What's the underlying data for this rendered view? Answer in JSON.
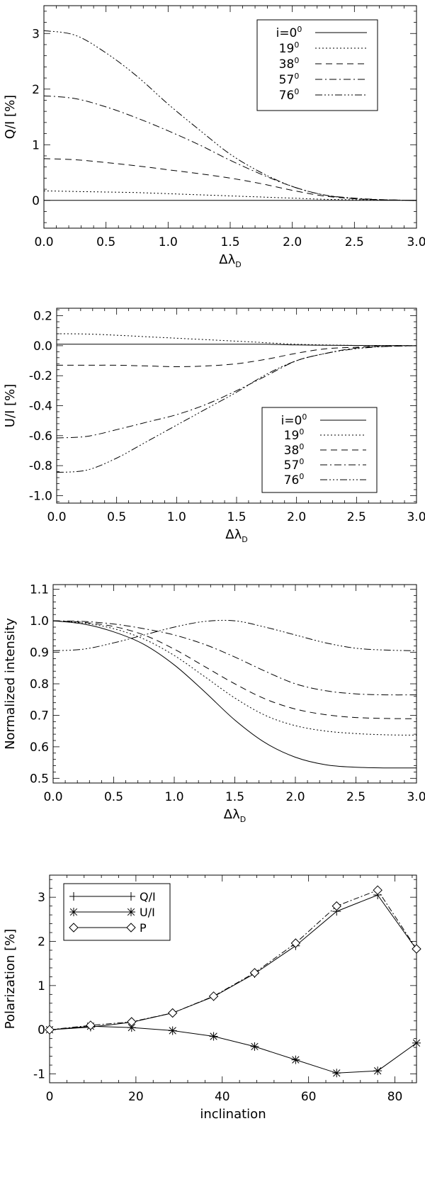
{
  "chart_data": [
    {
      "type": "line",
      "ylabel": "Q/I [%]",
      "xlabel": "Δλ_D",
      "xlabel_main": "Δλ",
      "xlabel_sub": "D",
      "xlim": [
        0,
        3
      ],
      "ylim": [
        -0.5,
        3.5
      ],
      "xticks": [
        "0.0",
        "0.5",
        "1.0",
        "1.5",
        "2.0",
        "2.5",
        "3.0"
      ],
      "xtick_values": [
        0,
        0.5,
        1,
        1.5,
        2,
        2.5,
        3
      ],
      "yticks": [
        "0",
        "1",
        "2",
        "3"
      ],
      "ytick_values": [
        0,
        1,
        2,
        3
      ],
      "legend_position": "top-right",
      "x": [
        0,
        0.25,
        0.5,
        0.75,
        1,
        1.25,
        1.5,
        1.75,
        2,
        2.25,
        2.5,
        2.75,
        3
      ],
      "series": [
        {
          "name": "i=0",
          "values": [
            0,
            0,
            0,
            0,
            0,
            0,
            0,
            0,
            0,
            0,
            0,
            0,
            0
          ]
        },
        {
          "name": "19",
          "values": [
            0.17,
            0.16,
            0.15,
            0.14,
            0.12,
            0.1,
            0.08,
            0.06,
            0.04,
            0.02,
            0.01,
            0.005,
            0
          ]
        },
        {
          "name": "38",
          "values": [
            0.75,
            0.73,
            0.68,
            0.62,
            0.55,
            0.48,
            0.4,
            0.3,
            0.18,
            0.08,
            0.03,
            0.01,
            0
          ]
        },
        {
          "name": "57",
          "values": [
            1.88,
            1.83,
            1.68,
            1.48,
            1.25,
            1.0,
            0.72,
            0.47,
            0.25,
            0.1,
            0.04,
            0.01,
            0
          ]
        },
        {
          "name": "76",
          "values": [
            3.05,
            2.97,
            2.65,
            2.23,
            1.73,
            1.27,
            0.83,
            0.5,
            0.25,
            0.1,
            0.03,
            0.01,
            0
          ]
        }
      ]
    },
    {
      "type": "line",
      "ylabel": "U/I [%]",
      "xlabel": "Δλ_D",
      "xlabel_main": "Δλ",
      "xlabel_sub": "D",
      "xlim": [
        0,
        3
      ],
      "ylim": [
        -1.05,
        0.25
      ],
      "xticks": [
        "0.0",
        "0.5",
        "1.0",
        "1.5",
        "2.0",
        "2.5",
        "3.0"
      ],
      "xtick_values": [
        0,
        0.5,
        1,
        1.5,
        2,
        2.5,
        3
      ],
      "yticks": [
        "0.2",
        "0.0",
        "-0.2",
        "-0.4",
        "-0.6",
        "-0.8",
        "-1.0"
      ],
      "ytick_values": [
        0.2,
        0,
        -0.2,
        -0.4,
        -0.6,
        -0.8,
        -1.0
      ],
      "legend_position": "bottom-right",
      "x": [
        0,
        0.25,
        0.5,
        0.75,
        1,
        1.25,
        1.5,
        1.75,
        2,
        2.25,
        2.5,
        2.75,
        3
      ],
      "series": [
        {
          "name": "i=0",
          "values": [
            0.01,
            0.01,
            0.01,
            0.01,
            0.01,
            0.01,
            0.01,
            0.01,
            0.005,
            0.003,
            0.002,
            0.001,
            0
          ]
        },
        {
          "name": "19",
          "values": [
            0.08,
            0.078,
            0.07,
            0.06,
            0.05,
            0.04,
            0.03,
            0.02,
            0.01,
            0.005,
            0.002,
            0.001,
            0
          ]
        },
        {
          "name": "38",
          "values": [
            -0.13,
            -0.13,
            -0.13,
            -0.135,
            -0.14,
            -0.135,
            -0.12,
            -0.09,
            -0.05,
            -0.02,
            -0.01,
            0,
            0
          ]
        },
        {
          "name": "57",
          "values": [
            -0.615,
            -0.605,
            -0.56,
            -0.51,
            -0.46,
            -0.39,
            -0.3,
            -0.2,
            -0.1,
            -0.05,
            -0.015,
            -0.005,
            0
          ]
        },
        {
          "name": "76",
          "values": [
            -0.845,
            -0.83,
            -0.75,
            -0.64,
            -0.53,
            -0.42,
            -0.31,
            -0.19,
            -0.1,
            -0.05,
            -0.02,
            -0.005,
            0
          ]
        }
      ]
    },
    {
      "type": "line",
      "ylabel": "Normalized intensity",
      "xlabel": "Δλ_D",
      "xlabel_main": "Δλ",
      "xlabel_sub": "D",
      "xlim": [
        0,
        3
      ],
      "ylim": [
        0.485,
        1.115
      ],
      "xticks": [
        "0.0",
        "0.5",
        "1.0",
        "1.5",
        "2.0",
        "2.5",
        "3.0"
      ],
      "xtick_values": [
        0,
        0.5,
        1,
        1.5,
        2,
        2.5,
        3
      ],
      "yticks": [
        "0.5",
        "0.6",
        "0.7",
        "0.8",
        "0.9",
        "1.0",
        "1.1"
      ],
      "ytick_values": [
        0.5,
        0.6,
        0.7,
        0.8,
        0.9,
        1.0,
        1.1
      ],
      "x": [
        0,
        0.25,
        0.5,
        0.75,
        1,
        1.25,
        1.5,
        1.75,
        2,
        2.25,
        2.5,
        2.75,
        3
      ],
      "series": [
        {
          "values": [
            1.0,
            0.99,
            0.965,
            0.925,
            0.86,
            0.775,
            0.685,
            0.613,
            0.567,
            0.543,
            0.535,
            0.533,
            0.533
          ]
        },
        {
          "values": [
            1.0,
            0.993,
            0.975,
            0.942,
            0.89,
            0.823,
            0.755,
            0.7,
            0.667,
            0.65,
            0.642,
            0.638,
            0.637
          ]
        },
        {
          "values": [
            1.0,
            0.995,
            0.982,
            0.955,
            0.91,
            0.855,
            0.8,
            0.752,
            0.72,
            0.702,
            0.693,
            0.69,
            0.689
          ]
        },
        {
          "values": [
            1.0,
            0.998,
            0.99,
            0.975,
            0.955,
            0.925,
            0.885,
            0.84,
            0.8,
            0.778,
            0.768,
            0.765,
            0.765
          ]
        },
        {
          "values": [
            0.905,
            0.91,
            0.93,
            0.955,
            0.98,
            0.998,
            1.0,
            0.98,
            0.955,
            0.93,
            0.913,
            0.907,
            0.905
          ]
        }
      ]
    },
    {
      "type": "line",
      "ylabel": "Polarization [%]",
      "xlabel": "inclination",
      "xlim": [
        0,
        85
      ],
      "ylim": [
        -1.2,
        3.5
      ],
      "xticks": [
        "0",
        "20",
        "40",
        "60",
        "80"
      ],
      "xtick_values": [
        0,
        20,
        40,
        60,
        80
      ],
      "yticks": [
        "-1",
        "0",
        "1",
        "2",
        "3"
      ],
      "ytick_values": [
        -1,
        0,
        1,
        2,
        3
      ],
      "legend_position": "top-left",
      "x": [
        0,
        9.5,
        19,
        28.5,
        38,
        47.5,
        57,
        66.5,
        76,
        85
      ],
      "series": [
        {
          "name": "Q/I",
          "marker": "plus",
          "values": [
            0,
            0.06,
            0.17,
            0.38,
            0.75,
            1.27,
            1.9,
            2.68,
            3.05,
            1.82
          ]
        },
        {
          "name": "U/I",
          "marker": "asterisk",
          "values": [
            0,
            0.08,
            0.05,
            -0.02,
            -0.15,
            -0.38,
            -0.68,
            -0.98,
            -0.93,
            -0.3
          ]
        },
        {
          "name": "P",
          "marker": "diamond",
          "values": [
            0,
            0.1,
            0.18,
            0.38,
            0.76,
            1.29,
            1.96,
            2.8,
            3.16,
            1.83
          ]
        }
      ]
    }
  ]
}
